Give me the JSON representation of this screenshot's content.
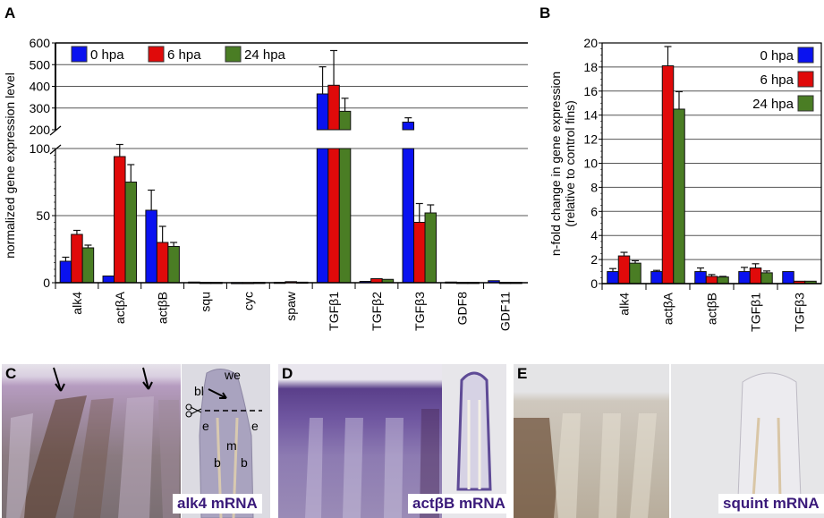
{
  "panels": {
    "A": "A",
    "B": "B",
    "C": "C",
    "D": "D",
    "E": "E"
  },
  "colors": {
    "s0": "#0a12f0",
    "s6": "#e00a0a",
    "s24": "#4a7d24"
  },
  "chart_data": [
    {
      "type": "bar",
      "id": "A",
      "ylabel": "normalized gene expression level",
      "broken_axis": true,
      "lower_ylim": [
        0,
        100
      ],
      "upper_ylim": [
        200,
        600
      ],
      "lower_ticks": [
        "0",
        "50",
        "100"
      ],
      "upper_ticks": [
        "200",
        "300",
        "400",
        "500",
        "600"
      ],
      "legend": [
        "0 hpa",
        "6 hpa",
        "24 hpa"
      ],
      "legend_position": "top",
      "categories": [
        "alk4",
        "actβA",
        "actβB",
        "squ",
        "cyc",
        "spaw",
        "TGFβ1",
        "TGFβ2",
        "TGFβ3",
        "GDF8",
        "GDF11"
      ],
      "series": [
        {
          "name": "0 hpa",
          "values": [
            16,
            5,
            54,
            0.5,
            0.1,
            0.3,
            365,
            1,
            235,
            0.5,
            1.5
          ],
          "errors": [
            3,
            0,
            15,
            0,
            0,
            0,
            125,
            0,
            20,
            0,
            0
          ]
        },
        {
          "name": "6 hpa",
          "values": [
            36,
            94,
            30,
            0.2,
            0.1,
            0.8,
            405,
            3,
            45,
            0.2,
            0.2
          ],
          "errors": [
            3,
            9,
            12,
            0,
            0,
            0,
            160,
            0,
            14,
            0,
            0
          ]
        },
        {
          "name": "24 hpa",
          "values": [
            26,
            75,
            27,
            0.2,
            0.2,
            0.4,
            285,
            2.5,
            52,
            0.2,
            0.2
          ],
          "errors": [
            2,
            13,
            3,
            0,
            0,
            0,
            60,
            0,
            6,
            0,
            0
          ]
        }
      ]
    },
    {
      "type": "bar",
      "id": "B",
      "ylabel": "n-fold change in gene expression",
      "ylabel2": "(relative to control fins)",
      "ylim": [
        0,
        20
      ],
      "ticks": [
        "0",
        "2",
        "4",
        "6",
        "8",
        "10",
        "12",
        "14",
        "16",
        "18",
        "20"
      ],
      "legend": [
        "0 hpa",
        "6 hpa",
        "24 hpa"
      ],
      "legend_position": "top-right",
      "categories": [
        "alk4",
        "actβA",
        "actβB",
        "TGFβ1",
        "TGFβ3"
      ],
      "series": [
        {
          "name": "0 hpa",
          "values": [
            1,
            1,
            1,
            1,
            1
          ],
          "errors": [
            0.25,
            0.1,
            0.3,
            0.35,
            0
          ]
        },
        {
          "name": "6 hpa",
          "values": [
            2.3,
            18.1,
            0.6,
            1.3,
            0.2
          ],
          "errors": [
            0.3,
            1.6,
            0.15,
            0.35,
            0
          ]
        },
        {
          "name": "24 hpa",
          "values": [
            1.7,
            14.5,
            0.55,
            0.9,
            0.2
          ],
          "errors": [
            0.2,
            1.45,
            0.05,
            0.15,
            0
          ]
        }
      ]
    }
  ],
  "images": {
    "C": {
      "caption": "alk4 mRNA",
      "labels": {
        "we": "we",
        "bl": "bl",
        "e1": "e",
        "e2": "e",
        "m": "m",
        "b1": "b",
        "b2": "b"
      }
    },
    "D": {
      "caption": "actβB mRNA"
    },
    "E": {
      "caption": "squint mRNA"
    }
  }
}
